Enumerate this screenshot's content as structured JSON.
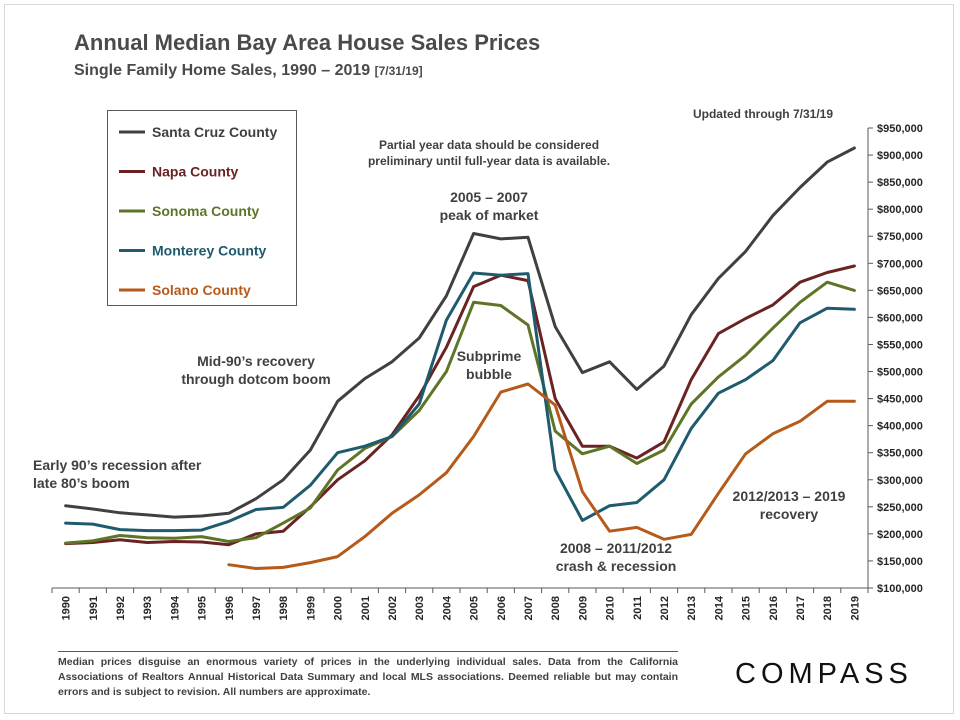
{
  "header": {
    "title": "Annual Median Bay Area House Sales Prices",
    "subtitle_main": "Single Family Home Sales, 1990 – 2019",
    "subtitle_small": "[7/31/19]"
  },
  "footer": {
    "text": "Median prices disguise an enormous variety of prices in the underlying individual sales. Data from the California Associations of Realtors Annual Historical Data Summary and local MLS associations.  Deemed reliable but may contain errors and is subject to revision. All numbers are approximate.",
    "logo": "COMPASS"
  },
  "chart_data": {
    "type": "line",
    "x": [
      1990,
      1991,
      1992,
      1993,
      1994,
      1995,
      1996,
      1997,
      1998,
      1999,
      2000,
      2001,
      2002,
      2003,
      2004,
      2005,
      2006,
      2007,
      2008,
      2009,
      2010,
      2011,
      2012,
      2013,
      2014,
      2015,
      2016,
      2017,
      2018,
      2019
    ],
    "y_ticks": [
      100000,
      150000,
      200000,
      250000,
      300000,
      350000,
      400000,
      450000,
      500000,
      550000,
      600000,
      650000,
      700000,
      750000,
      800000,
      850000,
      900000,
      950000
    ],
    "ylim": [
      100000,
      950000
    ],
    "y_axis_position": "right",
    "grid": false,
    "legend_position": "top-left",
    "series": [
      {
        "name": "Santa Cruz County",
        "color": "#404040",
        "values": [
          252000,
          246000,
          239000,
          235000,
          231000,
          233000,
          238000,
          265000,
          300000,
          355000,
          445000,
          487000,
          518000,
          562000,
          640000,
          755000,
          745000,
          748000,
          583000,
          498000,
          518000,
          467000,
          510000,
          605000,
          672000,
          722000,
          788000,
          840000,
          887000,
          913000
        ]
      },
      {
        "name": "Napa County",
        "color": "#6b2222",
        "values": [
          182000,
          184000,
          189000,
          184000,
          186000,
          185000,
          180000,
          200000,
          205000,
          250000,
          300000,
          335000,
          383000,
          455000,
          545000,
          657000,
          678000,
          668000,
          450000,
          362000,
          362000,
          340000,
          370000,
          485000,
          570000,
          598000,
          623000,
          665000,
          683000,
          695000
        ]
      },
      {
        "name": "Sonoma County",
        "color": "#5e7426",
        "values": [
          183000,
          187000,
          197000,
          193000,
          192000,
          195000,
          186000,
          193000,
          220000,
          248000,
          318000,
          358000,
          380000,
          428000,
          500000,
          628000,
          622000,
          586000,
          390000,
          348000,
          362000,
          330000,
          355000,
          440000,
          490000,
          530000,
          580000,
          628000,
          665000,
          650000
        ]
      },
      {
        "name": "Monterey County",
        "color": "#1f5a6e",
        "values": [
          220000,
          218000,
          208000,
          206000,
          206000,
          207000,
          223000,
          245000,
          249000,
          290000,
          350000,
          362000,
          380000,
          440000,
          595000,
          682000,
          678000,
          681000,
          318000,
          225000,
          252000,
          258000,
          300000,
          395000,
          460000,
          485000,
          520000,
          590000,
          617000,
          615000
        ]
      },
      {
        "name": "Solano County",
        "color": "#b55a1a",
        "values": [
          null,
          null,
          null,
          null,
          null,
          null,
          143000,
          136000,
          138000,
          147000,
          158000,
          195000,
          238000,
          272000,
          313000,
          380000,
          462000,
          477000,
          438000,
          278000,
          205000,
          212000,
          190000,
          199000,
          275000,
          348000,
          385000,
          408000,
          445000,
          445000
        ]
      }
    ],
    "annotations": [
      {
        "text": [
          "Updated through 7/31/19"
        ]
      },
      {
        "text": [
          "Partial year data should be considered",
          "preliminary until full-year data is available."
        ]
      },
      {
        "text": [
          "2005 – 2007",
          "peak of market"
        ]
      },
      {
        "text": [
          "Mid-90’s recovery",
          "through dotcom boom"
        ]
      },
      {
        "text": [
          "Subprime",
          "bubble"
        ]
      },
      {
        "text": [
          "Early 90’s recession after",
          "late 80’s boom"
        ]
      },
      {
        "text": [
          "2012/2013 – 2019",
          "recovery"
        ]
      },
      {
        "text": [
          "2008 – 2011/2012",
          "crash & recession"
        ]
      }
    ]
  }
}
